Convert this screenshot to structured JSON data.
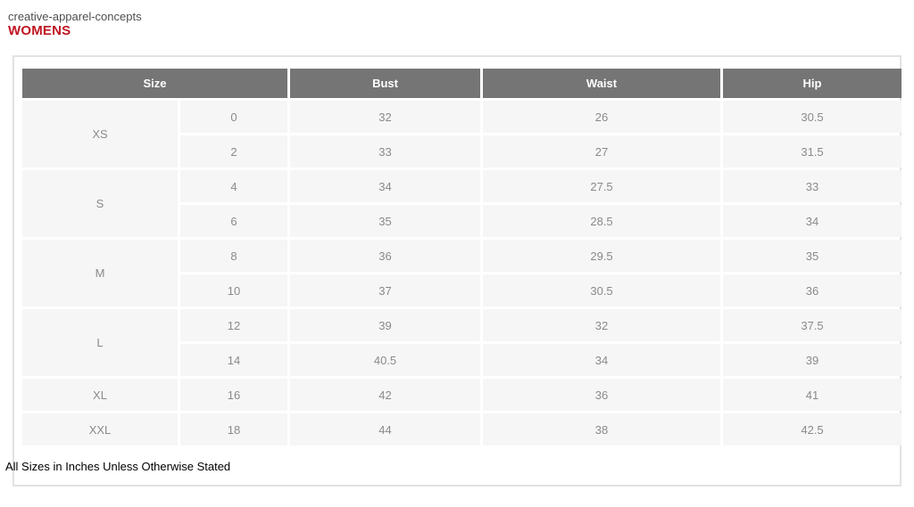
{
  "page": {
    "brand": "creative-apparel-concepts",
    "title": "WOMENS",
    "footnote": "All Sizes in Inches Unless Otherwise Stated"
  },
  "colors": {
    "title_red": "#bf1522",
    "header_bg": "#757575",
    "header_text": "#ffffff",
    "cell_bg": "#f6f6f6",
    "cell_text": "#8a8a8a",
    "panel_border": "#e2e2e2"
  },
  "table": {
    "headers": [
      "Size",
      "Bust",
      "Waist",
      "Hip"
    ],
    "groups": [
      {
        "label": "XS",
        "rows": [
          {
            "size": "0",
            "bust": "32",
            "waist": "26",
            "hip": "30.5"
          },
          {
            "size": "2",
            "bust": "33",
            "waist": "27",
            "hip": "31.5"
          }
        ]
      },
      {
        "label": "S",
        "rows": [
          {
            "size": "4",
            "bust": "34",
            "waist": "27.5",
            "hip": "33"
          },
          {
            "size": "6",
            "bust": "35",
            "waist": "28.5",
            "hip": "34"
          }
        ]
      },
      {
        "label": "M",
        "rows": [
          {
            "size": "8",
            "bust": "36",
            "waist": "29.5",
            "hip": "35"
          },
          {
            "size": "10",
            "bust": "37",
            "waist": "30.5",
            "hip": "36"
          }
        ]
      },
      {
        "label": "L",
        "rows": [
          {
            "size": "12",
            "bust": "39",
            "waist": "32",
            "hip": "37.5"
          },
          {
            "size": "14",
            "bust": "40.5",
            "waist": "34",
            "hip": "39"
          }
        ]
      },
      {
        "label": "XL",
        "rows": [
          {
            "size": "16",
            "bust": "42",
            "waist": "36",
            "hip": "41"
          }
        ]
      },
      {
        "label": "XXL",
        "rows": [
          {
            "size": "18",
            "bust": "44",
            "waist": "38",
            "hip": "42.5"
          }
        ]
      }
    ]
  },
  "chart_data": {
    "type": "table",
    "title": "WOMENS",
    "columns": [
      "Size group",
      "Size",
      "Bust",
      "Waist",
      "Hip"
    ],
    "rows": [
      [
        "XS",
        0,
        32,
        26,
        30.5
      ],
      [
        "XS",
        2,
        33,
        27,
        31.5
      ],
      [
        "S",
        4,
        34,
        27.5,
        33
      ],
      [
        "S",
        6,
        35,
        28.5,
        34
      ],
      [
        "M",
        8,
        36,
        29.5,
        35
      ],
      [
        "M",
        10,
        37,
        30.5,
        36
      ],
      [
        "L",
        12,
        39,
        32,
        37.5
      ],
      [
        "L",
        14,
        40.5,
        34,
        39
      ],
      [
        "XL",
        16,
        42,
        36,
        41
      ],
      [
        "XXL",
        18,
        44,
        38,
        42.5
      ]
    ],
    "note": "All Sizes in Inches Unless Otherwise Stated"
  }
}
